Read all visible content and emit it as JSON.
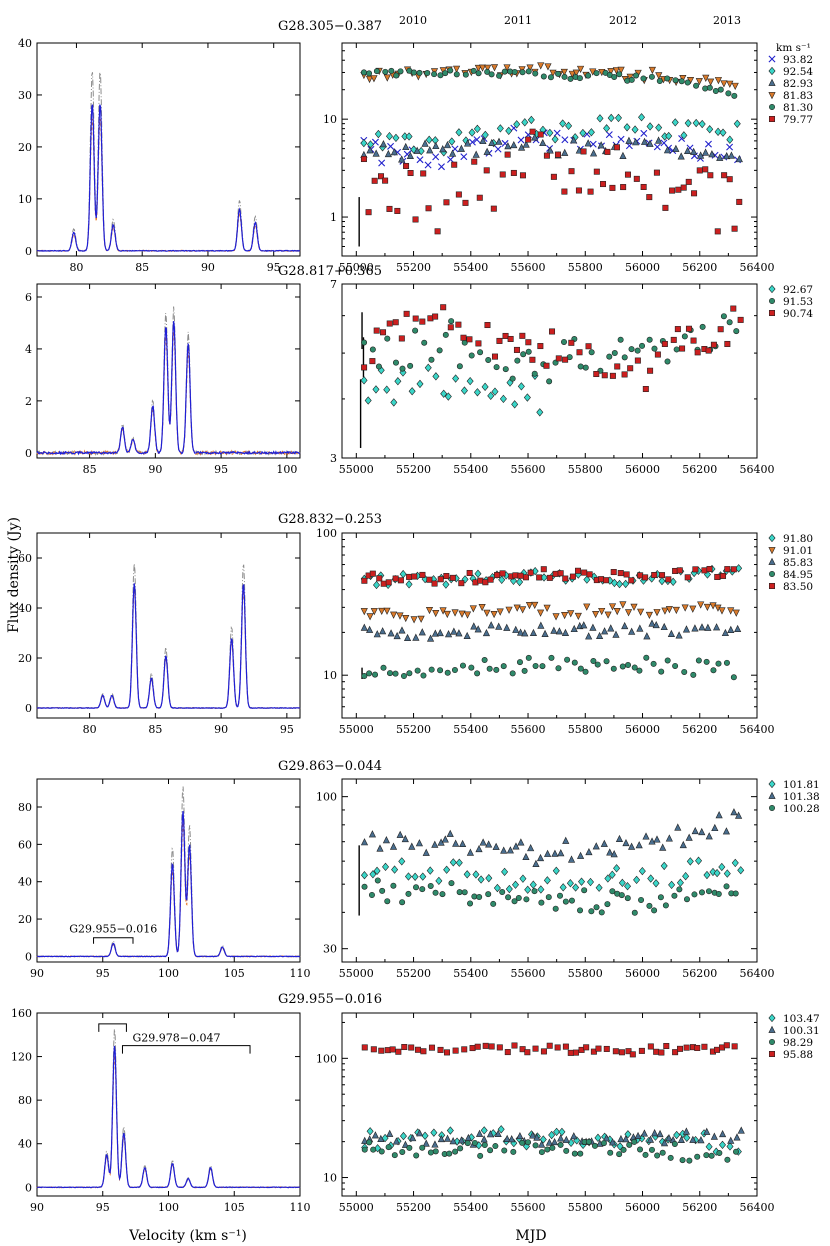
{
  "figure": {
    "ylabel_left": "Flux density (Jy)",
    "xlabel_left": "Velocity (km s⁻¹)",
    "xlabel_right": "MJD",
    "year_ticks": [
      "2010",
      "2011",
      "2012",
      "2013"
    ],
    "legend_unit": "km s⁻¹"
  },
  "colors": {
    "spectrum_blue": "#1f1fd6",
    "spectrum_orange": "#e8731a",
    "spectrum_gray": "#8c8c8c",
    "c_x": "#2222cc",
    "c_cyan": "#3ad6c8",
    "c_tri": "#4a6e8e",
    "c_orange": "#d97a2b",
    "c_green": "#2f8a6a",
    "c_red": "#cc1f1f"
  },
  "chart_data": [
    {
      "type": "line",
      "title": "G28.305−0.387",
      "xlabel": "Velocity (km s⁻¹)",
      "ylabel": "Flux density (Jy)",
      "xlim": [
        77,
        97
      ],
      "ylim": [
        -1,
        40
      ],
      "xticks": [
        80,
        85,
        90,
        95
      ],
      "yticks": [
        0,
        10,
        20,
        30,
        40
      ],
      "peaks": [
        [
          79.8,
          3.5
        ],
        [
          81.2,
          28.5
        ],
        [
          81.8,
          28.5
        ],
        [
          82.8,
          5
        ],
        [
          92.4,
          8
        ],
        [
          93.6,
          5.5
        ]
      ],
      "series": [
        {
          "style": "solid",
          "color": "spectrum_blue",
          "scale": 1.0
        },
        {
          "style": "dashed",
          "color": "spectrum_orange",
          "scale": 0.9
        },
        {
          "style": "dashdot",
          "color": "spectrum_gray",
          "scale": 1.22
        }
      ]
    },
    {
      "type": "line",
      "title": "G28.817+0.365",
      "xlabel": "Velocity (km s⁻¹)",
      "ylabel": "Flux density (Jy)",
      "xlim": [
        81,
        101
      ],
      "ylim": [
        -0.2,
        6.5
      ],
      "xticks": [
        85,
        90,
        95,
        100
      ],
      "yticks": [
        0,
        2,
        4,
        6
      ],
      "peaks": [
        [
          87.5,
          1.0
        ],
        [
          88.3,
          0.5
        ],
        [
          89.8,
          1.8
        ],
        [
          90.8,
          4.9
        ],
        [
          91.4,
          5.1
        ],
        [
          92.5,
          4.2
        ]
      ],
      "series": [
        {
          "style": "solid",
          "color": "spectrum_blue",
          "scale": 1.0
        },
        {
          "style": "dashed",
          "color": "spectrum_orange",
          "scale": 0.92
        },
        {
          "style": "dashdot",
          "color": "spectrum_gray",
          "scale": 1.1
        }
      ]
    },
    {
      "type": "line",
      "title": "G28.832−0.253",
      "xlabel": "Velocity (km s⁻¹)",
      "ylabel": "Flux density (Jy)",
      "xlim": [
        76,
        96
      ],
      "ylim": [
        -4,
        70
      ],
      "xticks": [
        80,
        85,
        90,
        95
      ],
      "yticks": [
        0,
        20,
        40,
        60
      ],
      "peaks": [
        [
          81.0,
          5
        ],
        [
          81.7,
          5
        ],
        [
          83.4,
          50
        ],
        [
          84.7,
          12
        ],
        [
          85.8,
          21
        ],
        [
          90.8,
          28
        ],
        [
          91.7,
          50
        ]
      ],
      "series": [
        {
          "style": "solid",
          "color": "spectrum_blue",
          "scale": 1.0
        },
        {
          "style": "dashed",
          "color": "spectrum_orange",
          "scale": 0.95
        },
        {
          "style": "dashdot",
          "color": "spectrum_gray",
          "scale": 1.16
        }
      ]
    },
    {
      "type": "line",
      "title": "G29.863−0.044",
      "xlabel": "Velocity (km s⁻¹)",
      "ylabel": "Flux density (Jy)",
      "xlim": [
        90,
        110
      ],
      "ylim": [
        -3,
        95
      ],
      "xticks": [
        90,
        95,
        100,
        105,
        110
      ],
      "yticks": [
        0,
        20,
        40,
        60,
        80
      ],
      "peaks": [
        [
          95.8,
          7
        ],
        [
          100.3,
          50
        ],
        [
          101.1,
          78
        ],
        [
          101.6,
          60
        ],
        [
          104.1,
          5
        ]
      ],
      "annotation": {
        "text": "G29.955−0.016",
        "x1": 94.3,
        "x2": 97.3,
        "y": 10
      },
      "series": [
        {
          "style": "solid",
          "color": "spectrum_blue",
          "scale": 1.0
        },
        {
          "style": "dashed",
          "color": "spectrum_orange",
          "scale": 0.92
        },
        {
          "style": "dashdot",
          "color": "spectrum_gray",
          "scale": 1.17
        }
      ]
    },
    {
      "type": "line",
      "title": "G29.955−0.016",
      "xlabel": "Velocity (km s⁻¹)",
      "ylabel": "Flux density (Jy)",
      "xlim": [
        90,
        110
      ],
      "ylim": [
        -8,
        160
      ],
      "xticks": [
        90,
        95,
        100,
        105,
        110
      ],
      "yticks": [
        0,
        40,
        80,
        120,
        160
      ],
      "peaks": [
        [
          95.3,
          30
        ],
        [
          95.9,
          130
        ],
        [
          96.6,
          50
        ],
        [
          98.2,
          18
        ],
        [
          100.3,
          22
        ],
        [
          101.5,
          8
        ],
        [
          103.2,
          18
        ]
      ],
      "brackets": [
        {
          "x1": 94.7,
          "x2": 96.8,
          "y": 150
        },
        {
          "text": "G29.978−0.047",
          "x1": 96.5,
          "x2": 106.2,
          "y": 130
        }
      ],
      "series": [
        {
          "style": "solid",
          "color": "spectrum_blue",
          "scale": 1.0
        },
        {
          "style": "dashed",
          "color": "spectrum_orange",
          "scale": 0.93
        },
        {
          "style": "dashdot",
          "color": "spectrum_gray",
          "scale": 1.12
        }
      ]
    },
    {
      "type": "scatter",
      "title": "G28.305−0.387 time series",
      "xlabel": "MJD",
      "ylabel": "Flux density (Jy)",
      "log": true,
      "xlim": [
        54950,
        56400
      ],
      "ylim": [
        0.4,
        60
      ],
      "xticks": [
        55000,
        55200,
        55400,
        55600,
        55800,
        56000,
        56200,
        56400
      ],
      "yticks": [
        1,
        10
      ],
      "error_bars": [
        [
          55010,
          0.9,
          0.5,
          1.6
        ]
      ],
      "series": [
        {
          "name": "93.82",
          "marker": "x",
          "color": "c_x",
          "level": 4.8,
          "trend": [
            -0.15,
            0.35,
            0.0,
            -0.2
          ],
          "scatter": 0.12
        },
        {
          "name": "92.54",
          "marker": "diamond",
          "color": "c_cyan",
          "level": 6.8,
          "trend": [
            -0.1,
            0.15,
            0.1,
            -0.05
          ],
          "scatter": 0.1
        },
        {
          "name": "82.93",
          "marker": "triangle",
          "color": "c_tri",
          "level": 4.6,
          "trend": [
            0.0,
            0.1,
            0.0,
            -0.1
          ],
          "scatter": 0.09
        },
        {
          "name": "81.83",
          "marker": "tri-down",
          "color": "c_orange",
          "level": 28,
          "trend": [
            0.05,
            0.05,
            -0.05,
            -0.15
          ],
          "scatter": 0.05
        },
        {
          "name": "81.30",
          "marker": "circle",
          "color": "c_green",
          "level": 29,
          "trend": [
            0.0,
            0.0,
            -0.05,
            -0.2
          ],
          "scatter": 0.04
        },
        {
          "name": "79.77",
          "marker": "square",
          "color": "c_red",
          "level": 2.4,
          "trend": [
            -0.3,
            0.4,
            0.0,
            -0.35
          ],
          "scatter": 0.32
        }
      ]
    },
    {
      "type": "scatter",
      "title": "G28.817+0.365 time series",
      "xlabel": "MJD",
      "ylabel": "Flux density (Jy)",
      "log": true,
      "xlim": [
        54950,
        56400
      ],
      "ylim": [
        3,
        7
      ],
      "xticks": [
        55000,
        55200,
        55400,
        55600,
        55800,
        56000,
        56200,
        56400
      ],
      "yticks": [
        3,
        7
      ],
      "error_bars": [
        [
          55020,
          5.6,
          5.1,
          6.1
        ],
        [
          55025,
          4.9,
          4.45,
          5.4
        ],
        [
          55015,
          3.8,
          3.15,
          4.4
        ]
      ],
      "series": [
        {
          "name": "92.67",
          "marker": "diamond",
          "color": "c_cyan",
          "level": 4.15,
          "trend": [
            0.02,
            -0.02,
            0.05,
            0.02
          ],
          "scatter": 0.04
        },
        {
          "name": "91.53",
          "marker": "circle",
          "color": "c_green",
          "level": 4.8,
          "trend": [
            0.05,
            -0.04,
            0.02,
            0.06
          ],
          "scatter": 0.04
        },
        {
          "name": "90.74",
          "marker": "square",
          "color": "c_red",
          "level": 4.9,
          "trend": [
            0.1,
            -0.05,
            -0.06,
            0.08
          ],
          "scatter": 0.04
        }
      ]
    },
    {
      "type": "scatter",
      "title": "G28.832−0.253 time series",
      "xlabel": "MJD",
      "ylabel": "Flux density (Jy)",
      "log": true,
      "xlim": [
        54950,
        56400
      ],
      "ylim": [
        5,
        100
      ],
      "xticks": [
        55000,
        55200,
        55400,
        55600,
        55800,
        56000,
        56200,
        56400
      ],
      "yticks": [
        10,
        100
      ],
      "error_bars": [
        [
          55020,
          10.3,
          9.4,
          11.3
        ]
      ],
      "series": [
        {
          "name": "91.80",
          "marker": "diamond",
          "color": "c_cyan",
          "level": 47,
          "trend": [
            0.0,
            0.03,
            -0.02,
            0.05
          ],
          "scatter": 0.04
        },
        {
          "name": "91.01",
          "marker": "tri-down",
          "color": "c_orange",
          "level": 27,
          "trend": [
            0.0,
            0.03,
            0.03,
            0.0
          ],
          "scatter": 0.04
        },
        {
          "name": "85.83",
          "marker": "triangle",
          "color": "c_tri",
          "level": 19.5,
          "trend": [
            0.0,
            0.05,
            0.0,
            -0.03
          ],
          "scatter": 0.05
        },
        {
          "name": "84.95",
          "marker": "circle",
          "color": "c_green",
          "level": 11,
          "trend": [
            0.0,
            0.05,
            0.0,
            -0.03
          ],
          "scatter": 0.06
        },
        {
          "name": "83.50",
          "marker": "square",
          "color": "c_red",
          "level": 48,
          "trend": [
            0.0,
            0.03,
            0.0,
            0.03
          ],
          "scatter": 0.04
        }
      ]
    },
    {
      "type": "scatter",
      "title": "G29.863−0.044 time series",
      "xlabel": "MJD",
      "ylabel": "Flux density (Jy)",
      "log": true,
      "xlim": [
        54950,
        56400
      ],
      "ylim": [
        27,
        115
      ],
      "xticks": [
        55000,
        55200,
        55400,
        55600,
        55800,
        56000,
        56200,
        56400
      ],
      "yticks": [
        30,
        100
      ],
      "error_bars": [
        [
          55010,
          52,
          39,
          68
        ]
      ],
      "series": [
        {
          "name": "101.81",
          "marker": "diamond",
          "color": "c_cyan",
          "level": 55,
          "trend": [
            0.0,
            -0.04,
            0.0,
            0.04
          ],
          "scatter": 0.04
        },
        {
          "name": "101.38",
          "marker": "triangle",
          "color": "c_tri",
          "level": 69,
          "trend": [
            0.0,
            -0.05,
            0.02,
            0.1
          ],
          "scatter": 0.04
        },
        {
          "name": "100.28",
          "marker": "circle",
          "color": "c_green",
          "level": 47,
          "trend": [
            0.0,
            -0.04,
            -0.02,
            0.03
          ],
          "scatter": 0.04
        }
      ]
    },
    {
      "type": "scatter",
      "title": "G29.955−0.016 time series",
      "xlabel": "MJD",
      "ylabel": "Flux density (Jy)",
      "log": true,
      "xlim": [
        54950,
        56400
      ],
      "ylim": [
        7,
        240
      ],
      "xticks": [
        55000,
        55200,
        55400,
        55600,
        55800,
        56000,
        56200,
        56400
      ],
      "yticks": [
        10,
        100
      ],
      "error_bars": [],
      "series": [
        {
          "name": "103.47",
          "marker": "diamond",
          "color": "c_cyan",
          "level": 20,
          "trend": [
            0.05,
            0.0,
            0.0,
            -0.05
          ],
          "scatter": 0.08
        },
        {
          "name": "100.31",
          "marker": "triangle",
          "color": "c_tri",
          "level": 21,
          "trend": [
            0.0,
            0.0,
            0.0,
            0.03
          ],
          "scatter": 0.05
        },
        {
          "name": "98.29",
          "marker": "circle",
          "color": "c_green",
          "level": 17,
          "trend": [
            0.0,
            0.0,
            0.0,
            -0.05
          ],
          "scatter": 0.07
        },
        {
          "name": "95.88",
          "marker": "square",
          "color": "c_red",
          "level": 120,
          "trend": [
            0.0,
            0.0,
            -0.02,
            0.02
          ],
          "scatter": 0.03
        }
      ]
    }
  ]
}
